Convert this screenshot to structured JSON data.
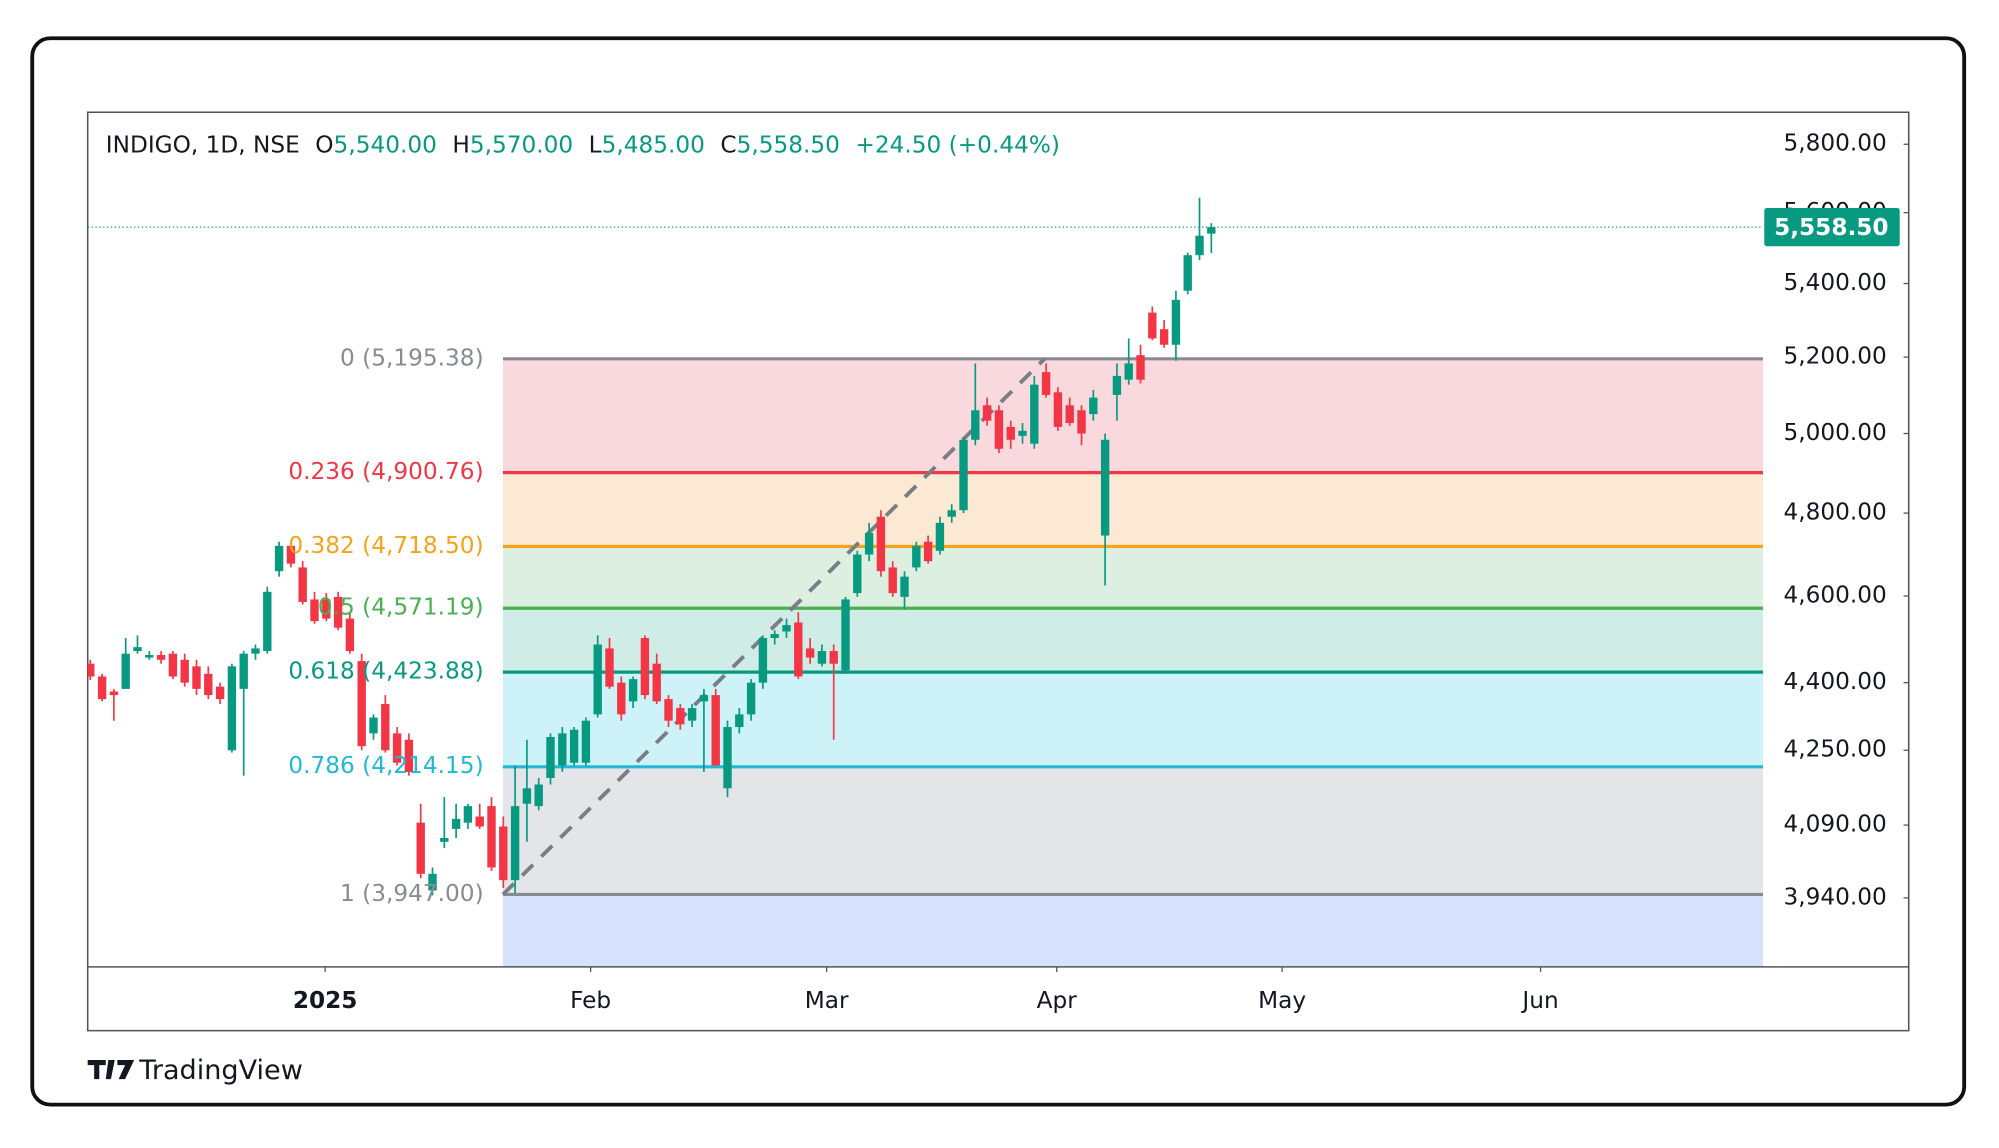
{
  "chart_data": {
    "type": "candlestick",
    "header": {
      "symbol": "INDIGO, 1D, NSE",
      "fields": [
        {
          "key": "O",
          "value": "5,540.00"
        },
        {
          "key": "H",
          "value": "5,570.00"
        },
        {
          "key": "L",
          "value": "5,485.00"
        },
        {
          "key": "C",
          "value": "5,558.50"
        }
      ],
      "change": "+24.50 (+0.44%)"
    },
    "brand": "TradingView",
    "up_color": "#089981",
    "down_color": "#f23645",
    "log_scale": true,
    "ylim": [
      3803,
      5896
    ],
    "yticks": [
      {
        "value": 5800,
        "label": "5,800.00"
      },
      {
        "value": 5600,
        "label": "5,600.00"
      },
      {
        "value": 5400,
        "label": "5,400.00"
      },
      {
        "value": 5200,
        "label": "5,200.00"
      },
      {
        "value": 5000,
        "label": "5,000.00"
      },
      {
        "value": 4800,
        "label": "4,800.00"
      },
      {
        "value": 4600,
        "label": "4,600.00"
      },
      {
        "value": 4400,
        "label": "4,400.00"
      },
      {
        "value": 4250,
        "label": "4,250.00"
      },
      {
        "value": 4090,
        "label": "4,090.00"
      },
      {
        "value": 3940,
        "label": "3,940.00"
      }
    ],
    "xlim": [
      -0.22,
      154.1
    ],
    "xticks": [
      {
        "value": 19.9,
        "label": "2025"
      },
      {
        "value": 42.4,
        "label": "Feb"
      },
      {
        "value": 62.4,
        "label": "Mar"
      },
      {
        "value": 81.9,
        "label": "Apr"
      },
      {
        "value": 101.0,
        "label": "May"
      },
      {
        "value": 122.9,
        "label": "Jun"
      }
    ],
    "last_price": {
      "value": 5558.5,
      "label": "5,558.50",
      "color": "#089981"
    },
    "fib_levels": [
      {
        "value": 5195.38,
        "label": "0 (5,195.38)",
        "color": "#878b94",
        "fill": "#f9d9de"
      },
      {
        "value": 4900.76,
        "label": "0.236 (4,900.76)",
        "color": "#f23645",
        "fill": "#fce9d3"
      },
      {
        "value": 4718.5,
        "label": "0.382 (4,718.50)",
        "color": "#f5a31a",
        "fill": "#dcefe1"
      },
      {
        "value": 4571.19,
        "label": "0.5 (4,571.19)",
        "color": "#4caf50",
        "fill": "#d0ece7"
      },
      {
        "value": 4423.88,
        "label": "0.618 (4,423.88)",
        "color": "#089981",
        "fill": "#cdf2f8"
      },
      {
        "value": 4214.15,
        "label": "0.786 (4,214.15)",
        "color": "#22b8d6",
        "fill": "#e4e5e9"
      },
      {
        "value": 3947.0,
        "label": "1 (3,947.00)",
        "color": "#878b94",
        "fill": "#d6e2fb"
      }
    ],
    "open": [
      4443,
      4414,
      4380,
      4386,
      4472,
      4457,
      4463,
      4466,
      4452,
      4437,
      4420,
      4391,
      4250,
      4386,
      4466,
      4472,
      4659,
      4720,
      4668,
      4592,
      4592,
      4598,
      4547,
      4449,
      4287,
      4352,
      4287,
      4273,
      4095,
      3955,
      4055,
      4082,
      4095,
      4108,
      4130,
      4087,
      3976,
      4135,
      4130,
      4190,
      4217,
      4223,
      4223,
      4329,
      4478,
      4400,
      4358,
      4502,
      4443,
      4363,
      4343,
      4315,
      4358,
      4372,
      4168,
      4301,
      4329,
      4400,
      4502,
      4517,
      4538,
      4478,
      4443,
      4472,
      4428,
      4607,
      4699,
      4791,
      4668,
      4598,
      4668,
      4730,
      4708,
      4791,
      4807,
      4984,
      5073,
      5060,
      5017,
      4994,
      4974,
      5160,
      5107,
      5073,
      5060,
      5050,
      4745,
      5100,
      5140,
      5205,
      5320,
      5275,
      5233,
      5380,
      5479,
      5540
    ],
    "high": [
      4452,
      4420,
      4386,
      4502,
      4508,
      4472,
      4472,
      4472,
      4466,
      4452,
      4437,
      4400,
      4443,
      4472,
      4487,
      4622,
      4730,
      4730,
      4683,
      4610,
      4607,
      4610,
      4562,
      4466,
      4329,
      4372,
      4301,
      4287,
      4135,
      4002,
      4149,
      4135,
      4135,
      4135,
      4149,
      4108,
      4217,
      4273,
      4190,
      4287,
      4301,
      4301,
      4322,
      4508,
      4502,
      4414,
      4414,
      4508,
      4466,
      4372,
      4352,
      4352,
      4386,
      4386,
      4315,
      4343,
      4408,
      4508,
      4520,
      4547,
      4562,
      4502,
      4487,
      4487,
      4598,
      4708,
      4776,
      4807,
      4683,
      4659,
      4730,
      4745,
      4791,
      4822,
      4990,
      5183,
      5093,
      5073,
      5033,
      5027,
      5150,
      5183,
      5120,
      5093,
      5073,
      5113,
      5000,
      5183,
      5250,
      5233,
      5337,
      5300,
      5380,
      5486,
      5643,
      5570
    ],
    "low": [
      4406,
      4358,
      4315,
      4386,
      4466,
      4452,
      4443,
      4408,
      4391,
      4372,
      4363,
      4352,
      4245,
      4195,
      4452,
      4466,
      4646,
      4668,
      4580,
      4535,
      4541,
      4520,
      4466,
      4250,
      4273,
      4245,
      4217,
      4195,
      3980,
      3945,
      4042,
      4063,
      4082,
      4082,
      3995,
      3960,
      3950,
      4055,
      4121,
      4176,
      4203,
      4217,
      4217,
      4322,
      4386,
      4315,
      4343,
      4363,
      4352,
      4301,
      4295,
      4301,
      4203,
      4217,
      4149,
      4287,
      4315,
      4386,
      4487,
      4502,
      4408,
      4443,
      4437,
      4273,
      4420,
      4598,
      4683,
      4646,
      4598,
      4568,
      4659,
      4677,
      4699,
      4776,
      4800,
      4970,
      5020,
      4950,
      4961,
      4974,
      4961,
      5093,
      5007,
      5020,
      4970,
      5033,
      4625,
      5033,
      5127,
      5130,
      5245,
      5225,
      5190,
      5370,
      5465,
      5485
    ],
    "close": [
      4414,
      4363,
      4372,
      4466,
      4481,
      4463,
      4452,
      4414,
      4400,
      4386,
      4372,
      4363,
      4437,
      4466,
      4478,
      4610,
      4720,
      4677,
      4586,
      4541,
      4547,
      4526,
      4472,
      4259,
      4322,
      4250,
      4223,
      4203,
      3989,
      3989,
      4063,
      4103,
      4130,
      4087,
      4002,
      3976,
      4130,
      4168,
      4176,
      4279,
      4287,
      4295,
      4315,
      4487,
      4391,
      4329,
      4408,
      4372,
      4358,
      4315,
      4307,
      4343,
      4372,
      4217,
      4301,
      4329,
      4400,
      4502,
      4511,
      4532,
      4414,
      4457,
      4472,
      4443,
      4592,
      4699,
      4751,
      4659,
      4607,
      4646,
      4720,
      4683,
      4776,
      4807,
      4984,
      5060,
      5033,
      4961,
      4984,
      5007,
      5127,
      5100,
      5017,
      5027,
      5000,
      5093,
      4984,
      5150,
      5183,
      5140,
      5250,
      5233,
      5355,
      5479,
      5534,
      5558.5
    ]
  }
}
